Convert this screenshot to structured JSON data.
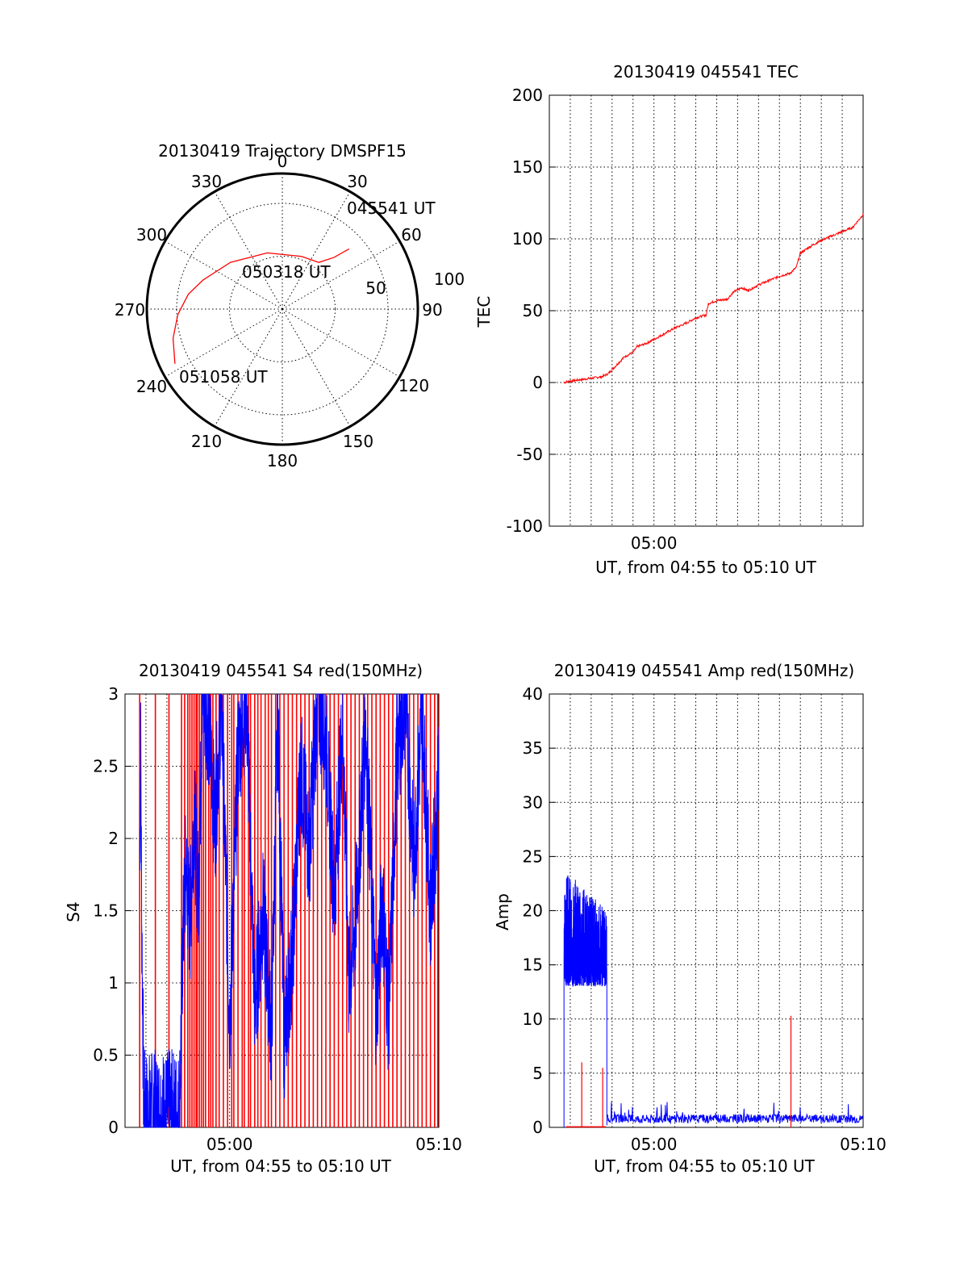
{
  "colors": {
    "red": "#ff0000",
    "blue": "#0000ff",
    "black": "#000000"
  },
  "chart_data": [
    {
      "type": "polar",
      "title": "20130419 Trajectory DMSPF15",
      "azimuth_labels": [
        "0",
        "30",
        "60",
        "90",
        "120",
        "150",
        "180",
        "210",
        "240",
        "270",
        "300",
        "330"
      ],
      "radial_labels": [
        "50",
        "100"
      ],
      "radial_values": [
        50,
        100
      ],
      "rlim": [
        0,
        100
      ],
      "annotations": [
        "045541 UT",
        "050318 UT",
        "051058 UT"
      ],
      "series": [
        {
          "color": "#ff0000",
          "points": [
            {
              "az": 48,
              "zen": 85
            },
            {
              "az": 45,
              "zen": 69
            },
            {
              "az": 38,
              "zen": 56
            },
            {
              "az": 20,
              "zen": 53
            },
            {
              "az": 345,
              "zen": 55
            },
            {
              "az": 312,
              "zen": 66
            },
            {
              "az": 290,
              "zen": 80
            },
            {
              "az": 279,
              "zen": 90
            },
            {
              "az": 267,
              "zen": 99
            },
            {
              "az": 255,
              "zen": 107
            },
            {
              "az": 243,
              "zen": 114
            }
          ]
        }
      ]
    },
    {
      "type": "line",
      "title": "20130419 045541 TEC",
      "xlabel": "UT, from 04:55 to 05:10 UT",
      "ylabel": "TEC",
      "xlim": [
        0,
        15
      ],
      "ylim": [
        -100,
        200
      ],
      "yticks": [
        -100,
        -50,
        0,
        50,
        100,
        150,
        200
      ],
      "yticklabels": [
        "-100",
        "-50",
        "0",
        "50",
        "100",
        "150",
        "200"
      ],
      "xticks": [
        5
      ],
      "xticklabels": [
        "05:00"
      ],
      "grid": true,
      "series": [
        {
          "color": "#ff0000",
          "x": [
            0.68,
            1.0,
            1.5,
            2.0,
            2.5,
            2.8,
            3.0,
            3.2,
            3.6,
            4.0,
            4.2,
            4.6,
            5.0,
            5.5,
            6.0,
            6.5,
            7.0,
            7.5,
            7.6,
            8.0,
            8.5,
            8.8,
            9.2,
            9.5,
            10.0,
            10.5,
            11.0,
            11.5,
            11.8,
            12.0,
            12.5,
            13.0,
            13.5,
            14.0,
            14.5,
            15.0
          ],
          "y": [
            0,
            1,
            2,
            3,
            4,
            6,
            9,
            12,
            18,
            21,
            25,
            27,
            30,
            34,
            38,
            41,
            45,
            47,
            55,
            57,
            58,
            63,
            66,
            64,
            68,
            71,
            74,
            76,
            80,
            90,
            95,
            99,
            102,
            105,
            108,
            117
          ]
        }
      ]
    },
    {
      "type": "line",
      "title": "20130419 045541 S4 red(150MHz)",
      "xlabel": "UT, from 04:55 to 05:10 UT",
      "ylabel": "S4",
      "xlim": [
        0,
        15
      ],
      "ylim": [
        0,
        3
      ],
      "yticks": [
        0,
        0.5,
        1,
        1.5,
        2,
        2.5,
        3
      ],
      "yticklabels": [
        "0",
        "0.5",
        "1",
        "1.5",
        "2",
        "2.5",
        "3"
      ],
      "xticks": [
        5,
        15
      ],
      "xticklabels": [
        "05:00",
        "05:10"
      ],
      "grid": true,
      "series": [
        {
          "color": "#0000ff",
          "x": [
            0.7,
            0.75,
            0.8,
            0.9,
            1.2,
            1.6,
            2.0,
            2.6,
            2.75,
            2.9,
            3.1,
            3.3,
            3.5,
            3.7,
            4.0,
            4.3,
            4.6,
            5.0,
            5.4,
            5.8,
            6.0,
            6.2,
            6.6,
            7.0,
            7.3,
            7.6,
            8.0,
            8.4,
            8.8,
            9.2,
            9.6,
            10.0,
            10.4,
            10.7,
            11.0,
            11.5,
            12.0,
            12.3,
            12.6,
            13.0,
            13.4,
            13.8,
            14.2,
            14.6,
            15.0
          ],
          "y": [
            1.9,
            2.6,
            1.4,
            0.1,
            0.09,
            0.1,
            0.1,
            0.1,
            1.2,
            1.8,
            1.4,
            2.2,
            1.6,
            3.0,
            2.8,
            2.1,
            3.0,
            0.72,
            2.6,
            3.0,
            1.9,
            0.85,
            1.5,
            0.65,
            2.9,
            0.6,
            1.2,
            2.5,
            1.9,
            3.0,
            2.7,
            1.6,
            2.8,
            1.0,
            1.4,
            2.8,
            0.8,
            1.6,
            0.75,
            2.6,
            3.0,
            1.8,
            2.9,
            1.5,
            2.4
          ]
        },
        {
          "color": "#ff0000",
          "type": "vlines",
          "x": [
            0.7,
            1.45,
            2.1,
            2.7,
            2.85,
            3.0,
            3.1,
            3.2,
            3.3,
            3.4,
            3.45,
            3.55,
            3.65,
            3.75,
            3.85,
            4.0,
            4.1,
            4.2,
            4.35,
            4.5,
            4.7,
            4.9,
            5.1,
            5.2,
            5.4,
            5.6,
            5.7,
            5.9,
            6.0,
            6.2,
            6.35,
            6.5,
            6.7,
            6.85,
            7.0,
            7.2,
            7.4,
            7.6,
            7.8,
            8.0,
            8.2,
            8.4,
            8.6,
            8.8,
            9.0,
            9.2,
            9.4,
            9.6,
            9.8,
            10.0,
            10.2,
            10.4,
            10.6,
            10.8,
            11.0,
            11.2,
            11.4,
            11.6,
            11.8,
            12.0,
            12.2,
            12.4,
            12.6,
            12.8,
            13.0,
            13.2,
            13.4,
            13.6,
            13.8,
            14.0,
            14.2,
            14.4,
            14.6,
            14.8,
            14.95
          ]
        }
      ]
    },
    {
      "type": "line",
      "title": "20130419 045541 Amp red(150MHz)",
      "xlabel": "UT, from 04:55 to 05:10 UT",
      "ylabel": "Amp",
      "xlim": [
        0,
        15
      ],
      "ylim": [
        0,
        40
      ],
      "yticks": [
        0,
        5,
        10,
        15,
        20,
        25,
        30,
        35,
        40
      ],
      "yticklabels": [
        "0",
        "5",
        "10",
        "15",
        "20",
        "25",
        "30",
        "35",
        "40"
      ],
      "xticks": [
        5,
        15
      ],
      "xticklabels": [
        "05:00",
        "05:10"
      ],
      "grid": true,
      "series": [
        {
          "color": "#0000ff",
          "type": "noise_band",
          "x_start": 0.7,
          "x_end": 2.75,
          "y_low": 13,
          "y_high": 24,
          "baseline_after": 0.4
        },
        {
          "color": "#ff0000",
          "type": "spikes",
          "x": [
            1.55,
            2.55,
            11.55
          ],
          "y": [
            6,
            5.5,
            10.3
          ]
        }
      ]
    }
  ]
}
